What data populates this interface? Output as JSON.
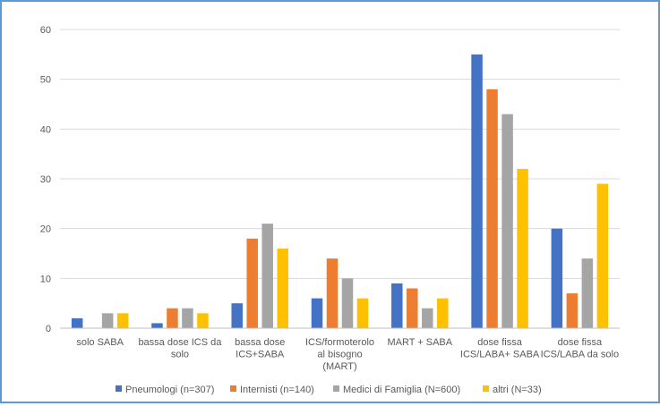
{
  "chart_data": {
    "type": "bar",
    "title": "",
    "xlabel": "",
    "ylabel": "",
    "ylim": [
      0,
      60
    ],
    "yticks": [
      0,
      10,
      20,
      30,
      40,
      50,
      60
    ],
    "grid": true,
    "legend_position": "bottom",
    "categories": [
      [
        "solo SABA"
      ],
      [
        "bassa dose ICS da",
        "solo"
      ],
      [
        "bassa dose",
        "ICS+SABA"
      ],
      [
        "ICS/formoterolo",
        "al bisogno",
        "(MART)"
      ],
      [
        "MART + SABA"
      ],
      [
        "dose fissa",
        "ICS/LABA+ SABA"
      ],
      [
        "dose fissa",
        "ICS/LABA da solo"
      ]
    ],
    "series": [
      {
        "name": "Pneumologi (n=307)",
        "color": "#4472c4",
        "values": [
          2,
          1,
          5,
          6,
          9,
          55,
          20
        ]
      },
      {
        "name": "Internisti (n=140)",
        "color": "#ed7d31",
        "values": [
          0,
          4,
          18,
          14,
          8,
          48,
          7
        ]
      },
      {
        "name": "Medici di Famiglia (N=600)",
        "color": "#a5a5a5",
        "values": [
          3,
          4,
          21,
          10,
          4,
          43,
          14
        ]
      },
      {
        "name": "altri (N=33)",
        "color": "#ffc000",
        "values": [
          3,
          3,
          16,
          6,
          6,
          32,
          29
        ]
      }
    ]
  }
}
